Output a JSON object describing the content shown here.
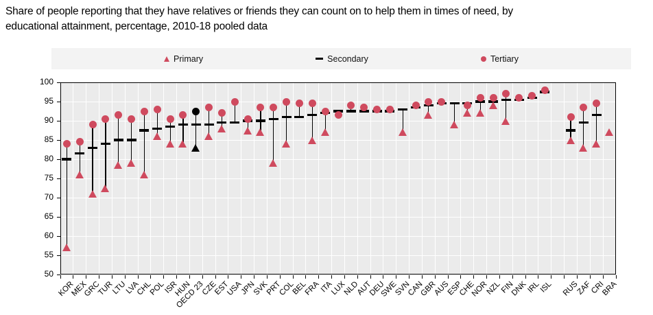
{
  "title": {
    "line1": "Share of people reporting that they have relatives or friends they can count on to help them in times of need, by",
    "line2": "educational attainment, percentage, 2010-18 pooled data"
  },
  "legend": [
    {
      "label": "Primary",
      "marker": "triangle",
      "color": "#cf4a5e"
    },
    {
      "label": "Secondary",
      "marker": "dash",
      "color": "#000000"
    },
    {
      "label": "Tertiary",
      "marker": "circle",
      "color": "#cf4a5e"
    }
  ],
  "chart_data": {
    "type": "scatter",
    "title": "Share of people reporting that they have relatives or friends they can count on to help them in times of need, by educational attainment, percentage, 2010-18 pooled data",
    "xlabel": "",
    "ylabel": "percentage",
    "ylim": [
      50,
      100
    ],
    "ytick_step": 5,
    "grid": true,
    "legend_position": "top",
    "gap_after": "ISL",
    "highlight_category": "OECD 23",
    "colors": {
      "default": "#cf4a5e",
      "highlight": "#000000",
      "secondary": "#000000"
    },
    "categories": [
      "KOR",
      "MEX",
      "GRC",
      "TUR",
      "LTU",
      "LVA",
      "CHL",
      "POL",
      "ISR",
      "HUN",
      "OECD 23",
      "CZE",
      "EST",
      "USA",
      "JPN",
      "SVK",
      "PRT",
      "COL",
      "BEL",
      "FRA",
      "ITA",
      "LUX",
      "NLD",
      "AUT",
      "DEU",
      "SWE",
      "SVN",
      "CAN",
      "GBR",
      "AUS",
      "ESP",
      "CHE",
      "NOR",
      "NZL",
      "FIN",
      "DNK",
      "IRL",
      "ISL",
      "RUS",
      "ZAF",
      "CRI",
      "BRA"
    ],
    "series": [
      {
        "name": "Primary",
        "marker": "triangle",
        "values": [
          57,
          76,
          71,
          72.5,
          78.5,
          79,
          76,
          86,
          84,
          84,
          83,
          86,
          88,
          null,
          87.5,
          87,
          79,
          84,
          null,
          85,
          87,
          null,
          null,
          null,
          null,
          null,
          87,
          null,
          91.5,
          null,
          89,
          92,
          92,
          94,
          90,
          null,
          null,
          null,
          85,
          83,
          84,
          87
        ]
      },
      {
        "name": "Secondary",
        "marker": "dash",
        "values": [
          80,
          81.5,
          83,
          84,
          85,
          85,
          87.5,
          88,
          88.5,
          89,
          89,
          89,
          89.5,
          89.5,
          90,
          90,
          90.5,
          91,
          91,
          91.5,
          92,
          92.5,
          92.5,
          92.5,
          92.5,
          92.5,
          93,
          93.5,
          94,
          94.5,
          94.5,
          94.5,
          95,
          95,
          95.5,
          95.5,
          96,
          97.5,
          87.5,
          89.5,
          91.5,
          null
        ]
      },
      {
        "name": "Tertiary",
        "marker": "circle",
        "values": [
          84,
          84.5,
          89,
          90.5,
          91.5,
          90.5,
          92.5,
          93,
          90.5,
          91.5,
          92.5,
          93.5,
          92,
          95,
          90.5,
          93.5,
          93.5,
          95,
          94.5,
          94.5,
          92.5,
          91.5,
          94,
          93.5,
          93,
          93,
          null,
          94,
          95,
          95,
          null,
          94,
          96,
          96,
          97,
          96,
          96.5,
          98,
          91,
          93.5,
          94.5,
          null
        ]
      }
    ]
  }
}
